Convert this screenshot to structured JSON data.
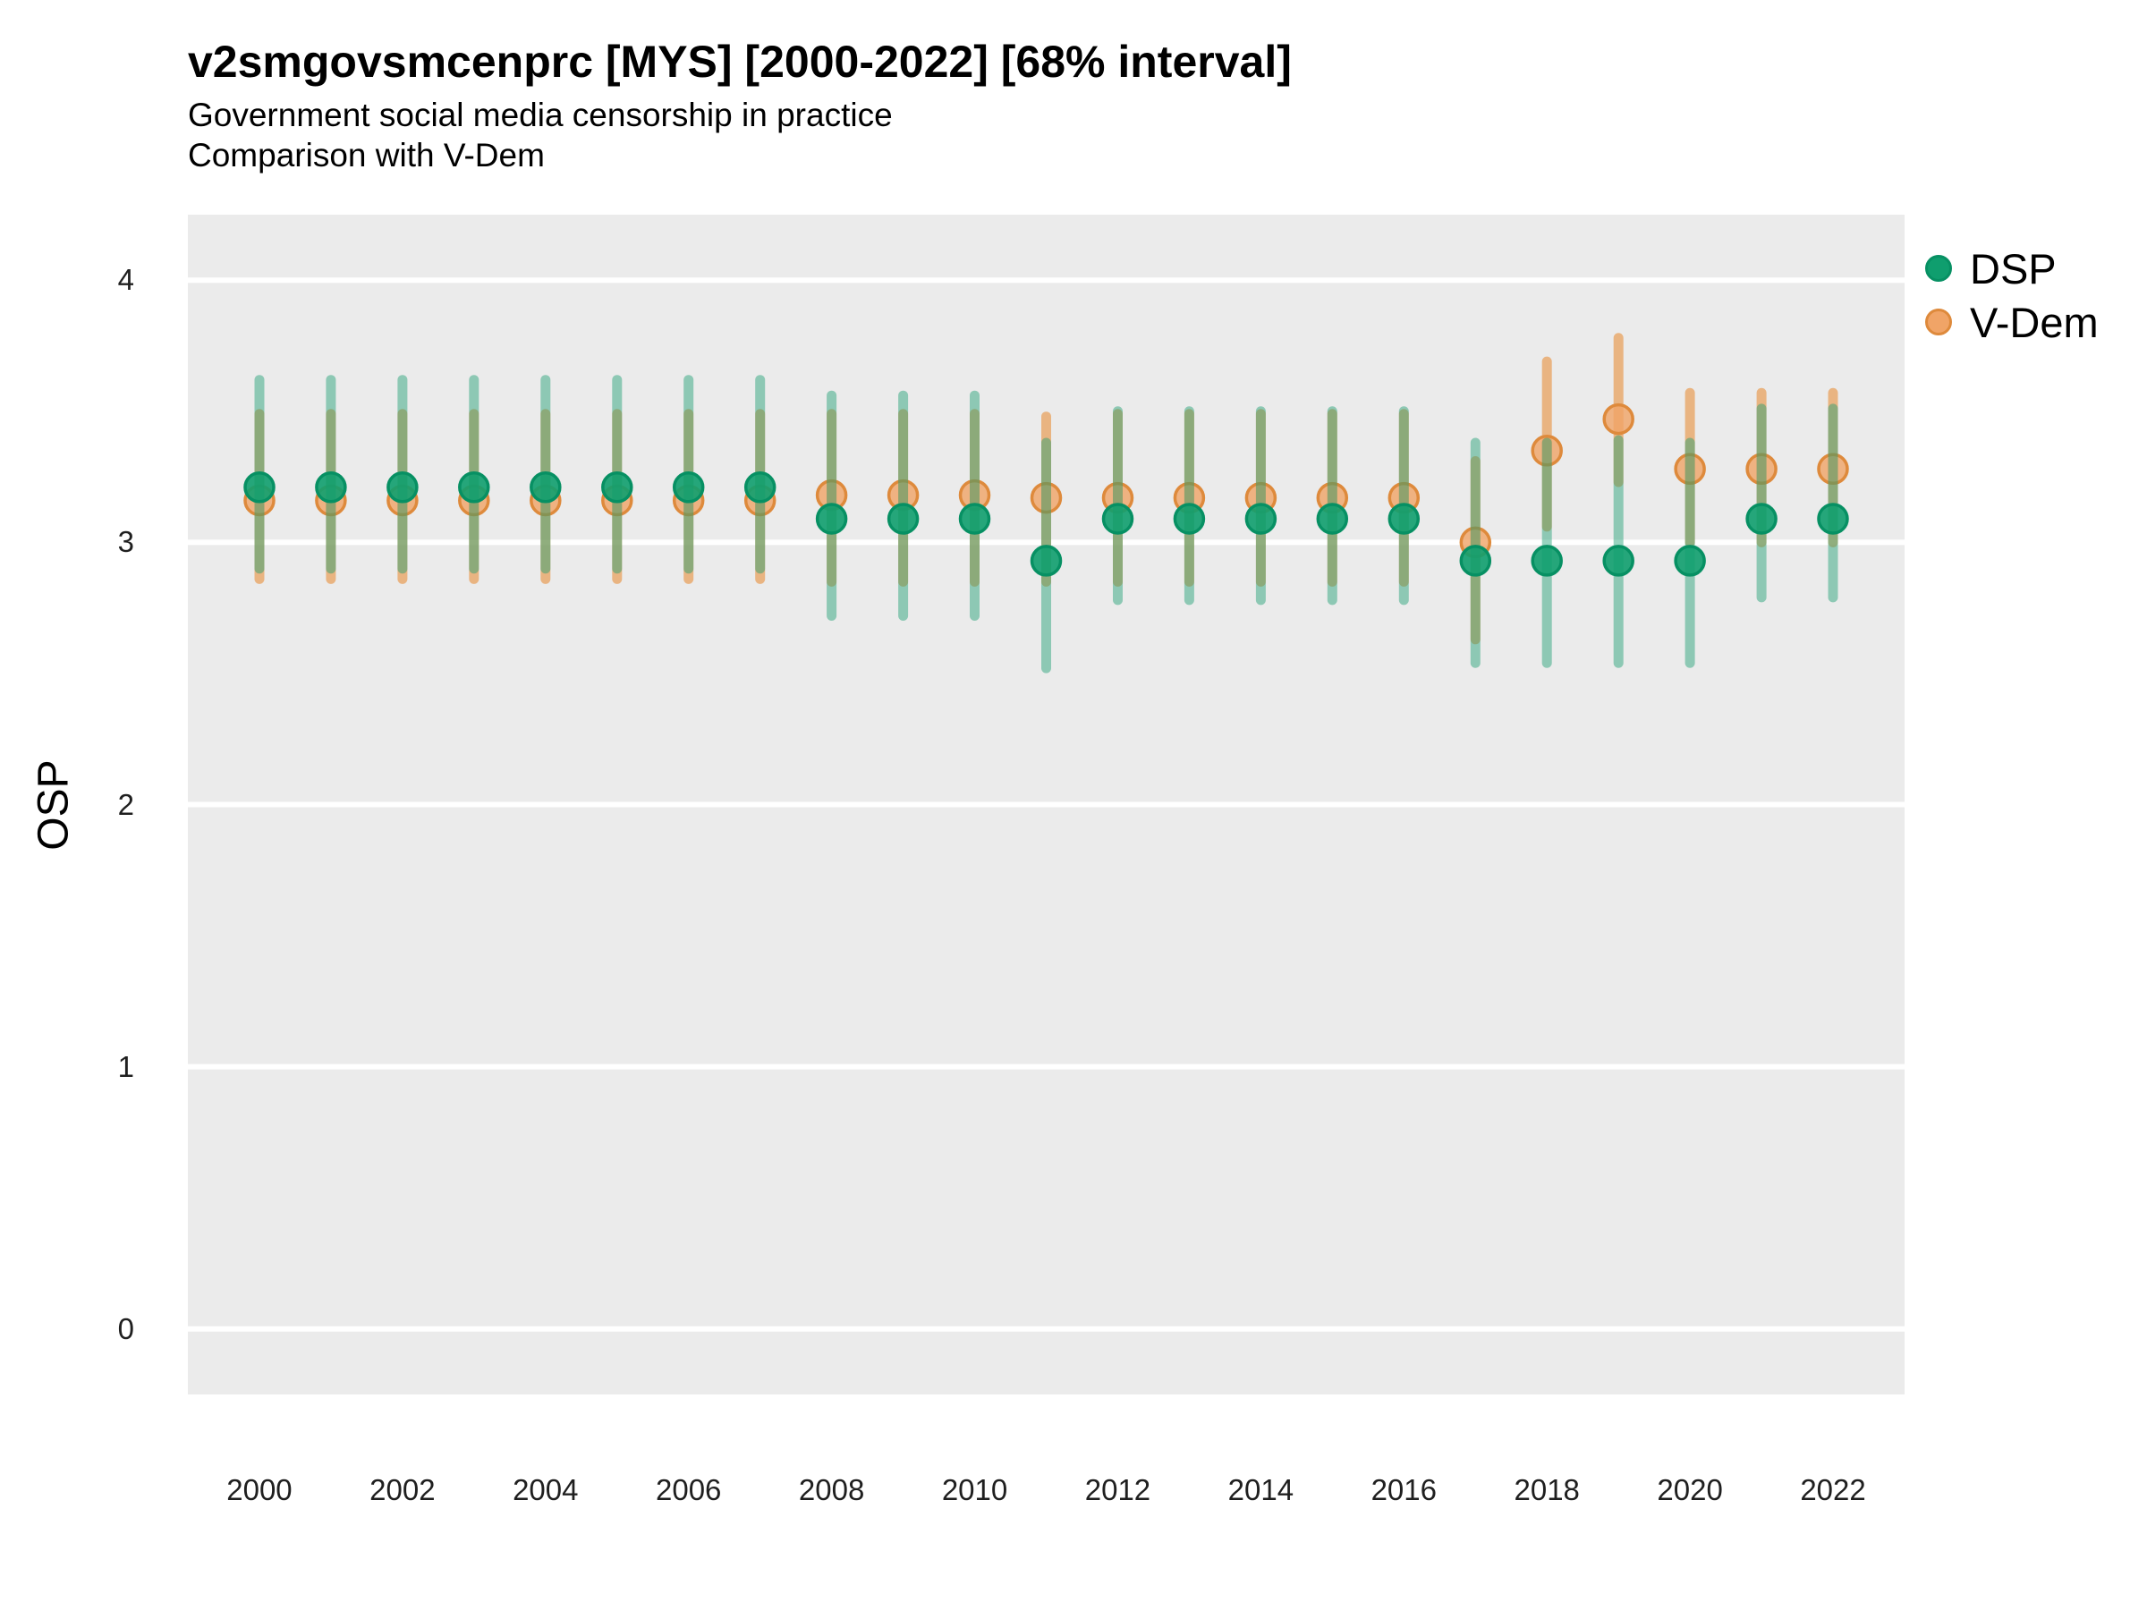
{
  "chart_data": {
    "type": "scatter",
    "variant": "point-interval (pointrange)",
    "interval_label": "68% interval",
    "title": "v2smgovsmcenprc [MYS] [2000-2022] [68% interval]",
    "subtitle": [
      "Government social media censorship in practice",
      "Comparison with V-Dem"
    ],
    "xlabel": "",
    "ylabel": "OSP",
    "ylim": [
      -0.25,
      4.25
    ],
    "yticks": [
      0,
      1,
      2,
      3,
      4
    ],
    "xticks": [
      2000,
      2002,
      2004,
      2006,
      2008,
      2010,
      2012,
      2014,
      2016,
      2018,
      2020,
      2022
    ],
    "years": [
      2000,
      2001,
      2002,
      2003,
      2004,
      2005,
      2006,
      2007,
      2008,
      2009,
      2010,
      2011,
      2012,
      2013,
      2014,
      2015,
      2016,
      2017,
      2018,
      2019,
      2020,
      2021,
      2022
    ],
    "grid": "major-horizontal-white-only",
    "legend_position": "right",
    "panel_background": "#EBEBEB",
    "gridline_color": "#FFFFFF",
    "series": [
      {
        "name": "DSP",
        "point_fill": "#0F9E6E",
        "point_alpha": 0.9,
        "point_stroke": "#079063",
        "bar_color": "rgba(26,158,112,0.45)",
        "data": [
          {
            "year": 2000,
            "est": 3.21,
            "lo": 2.9,
            "hi": 3.62
          },
          {
            "year": 2001,
            "est": 3.21,
            "lo": 2.9,
            "hi": 3.62
          },
          {
            "year": 2002,
            "est": 3.21,
            "lo": 2.9,
            "hi": 3.62
          },
          {
            "year": 2003,
            "est": 3.21,
            "lo": 2.9,
            "hi": 3.62
          },
          {
            "year": 2004,
            "est": 3.21,
            "lo": 2.9,
            "hi": 3.62
          },
          {
            "year": 2005,
            "est": 3.21,
            "lo": 2.9,
            "hi": 3.62
          },
          {
            "year": 2006,
            "est": 3.21,
            "lo": 2.9,
            "hi": 3.62
          },
          {
            "year": 2007,
            "est": 3.21,
            "lo": 2.9,
            "hi": 3.62
          },
          {
            "year": 2008,
            "est": 3.09,
            "lo": 2.72,
            "hi": 3.56
          },
          {
            "year": 2009,
            "est": 3.09,
            "lo": 2.72,
            "hi": 3.56
          },
          {
            "year": 2010,
            "est": 3.09,
            "lo": 2.72,
            "hi": 3.56
          },
          {
            "year": 2011,
            "est": 2.93,
            "lo": 2.52,
            "hi": 3.38
          },
          {
            "year": 2012,
            "est": 3.09,
            "lo": 2.78,
            "hi": 3.5
          },
          {
            "year": 2013,
            "est": 3.09,
            "lo": 2.78,
            "hi": 3.5
          },
          {
            "year": 2014,
            "est": 3.09,
            "lo": 2.78,
            "hi": 3.5
          },
          {
            "year": 2015,
            "est": 3.09,
            "lo": 2.78,
            "hi": 3.5
          },
          {
            "year": 2016,
            "est": 3.09,
            "lo": 2.78,
            "hi": 3.5
          },
          {
            "year": 2017,
            "est": 2.93,
            "lo": 2.54,
            "hi": 3.38
          },
          {
            "year": 2018,
            "est": 2.93,
            "lo": 2.54,
            "hi": 3.38
          },
          {
            "year": 2019,
            "est": 2.93,
            "lo": 2.54,
            "hi": 3.39
          },
          {
            "year": 2020,
            "est": 2.93,
            "lo": 2.54,
            "hi": 3.38
          },
          {
            "year": 2021,
            "est": 3.09,
            "lo": 2.79,
            "hi": 3.51
          },
          {
            "year": 2022,
            "est": 3.09,
            "lo": 2.79,
            "hi": 3.51
          }
        ]
      },
      {
        "name": "V-Dem",
        "point_fill": "#F0A467",
        "point_alpha": 0.8,
        "point_stroke": "#DE8A3C",
        "bar_color": "rgba(232,144,58,0.6)",
        "data": [
          {
            "year": 2000,
            "est": 3.16,
            "lo": 2.86,
            "hi": 3.49
          },
          {
            "year": 2001,
            "est": 3.16,
            "lo": 2.86,
            "hi": 3.49
          },
          {
            "year": 2002,
            "est": 3.16,
            "lo": 2.86,
            "hi": 3.49
          },
          {
            "year": 2003,
            "est": 3.16,
            "lo": 2.86,
            "hi": 3.49
          },
          {
            "year": 2004,
            "est": 3.16,
            "lo": 2.86,
            "hi": 3.49
          },
          {
            "year": 2005,
            "est": 3.16,
            "lo": 2.86,
            "hi": 3.49
          },
          {
            "year": 2006,
            "est": 3.16,
            "lo": 2.86,
            "hi": 3.49
          },
          {
            "year": 2007,
            "est": 3.16,
            "lo": 2.86,
            "hi": 3.49
          },
          {
            "year": 2008,
            "est": 3.18,
            "lo": 2.85,
            "hi": 3.49
          },
          {
            "year": 2009,
            "est": 3.18,
            "lo": 2.85,
            "hi": 3.49
          },
          {
            "year": 2010,
            "est": 3.18,
            "lo": 2.85,
            "hi": 3.49
          },
          {
            "year": 2011,
            "est": 3.17,
            "lo": 2.85,
            "hi": 3.48
          },
          {
            "year": 2012,
            "est": 3.17,
            "lo": 2.85,
            "hi": 3.49
          },
          {
            "year": 2013,
            "est": 3.17,
            "lo": 2.85,
            "hi": 3.49
          },
          {
            "year": 2014,
            "est": 3.17,
            "lo": 2.85,
            "hi": 3.49
          },
          {
            "year": 2015,
            "est": 3.17,
            "lo": 2.85,
            "hi": 3.49
          },
          {
            "year": 2016,
            "est": 3.17,
            "lo": 2.85,
            "hi": 3.49
          },
          {
            "year": 2017,
            "est": 3.0,
            "lo": 2.63,
            "hi": 3.31
          },
          {
            "year": 2018,
            "est": 3.35,
            "lo": 3.06,
            "hi": 3.69
          },
          {
            "year": 2019,
            "est": 3.47,
            "lo": 3.23,
            "hi": 3.78
          },
          {
            "year": 2020,
            "est": 3.28,
            "lo": 3.0,
            "hi": 3.57
          },
          {
            "year": 2021,
            "est": 3.28,
            "lo": 3.0,
            "hi": 3.57
          },
          {
            "year": 2022,
            "est": 3.28,
            "lo": 3.0,
            "hi": 3.57
          }
        ]
      }
    ]
  }
}
